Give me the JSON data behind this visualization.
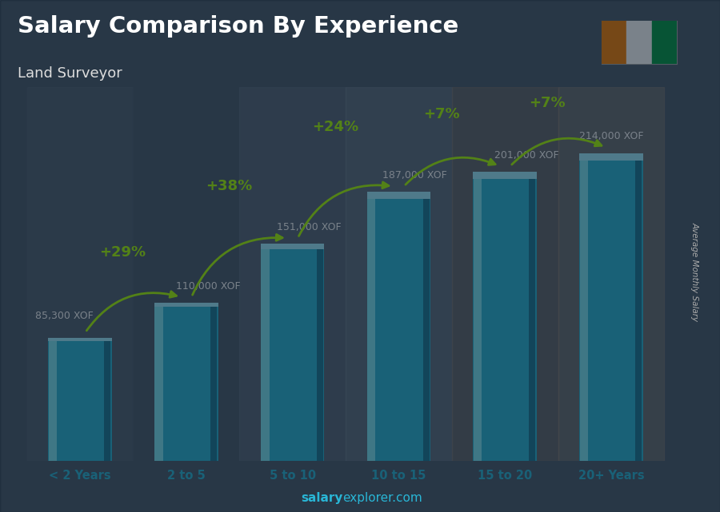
{
  "title": "Salary Comparison By Experience",
  "subtitle": "Land Surveyor",
  "ylabel": "Average Monthly Salary",
  "footer_bold": "salary",
  "footer_normal": "explorer.com",
  "categories": [
    "< 2 Years",
    "2 to 5",
    "5 to 10",
    "10 to 15",
    "15 to 20",
    "20+ Years"
  ],
  "values": [
    85300,
    110000,
    151000,
    187000,
    201000,
    214000
  ],
  "labels": [
    "85,300 XOF",
    "110,000 XOF",
    "151,000 XOF",
    "187,000 XOF",
    "201,000 XOF",
    "214,000 XOF"
  ],
  "pct_labels": [
    "+29%",
    "+38%",
    "+24%",
    "+7%",
    "+7%"
  ],
  "bar_color_main": "#29b6d6",
  "bar_color_light": "#7de8f5",
  "bar_color_dark": "#1a7a95",
  "bar_color_top": "#a0efff",
  "overlay_color": "#0d1b2a",
  "overlay_alpha": 0.55,
  "title_color": "#ffffff",
  "subtitle_color": "#dddddd",
  "label_color": "#ffffff",
  "pct_color": "#aaff00",
  "tick_color": "#29b6d6",
  "footer_color": "#29b6d6",
  "ylabel_color": "#aaaaaa",
  "flag_colors": [
    "#f77f00",
    "#ffffff",
    "#009a44"
  ],
  "ylim_max": 260000,
  "bar_width": 0.6
}
